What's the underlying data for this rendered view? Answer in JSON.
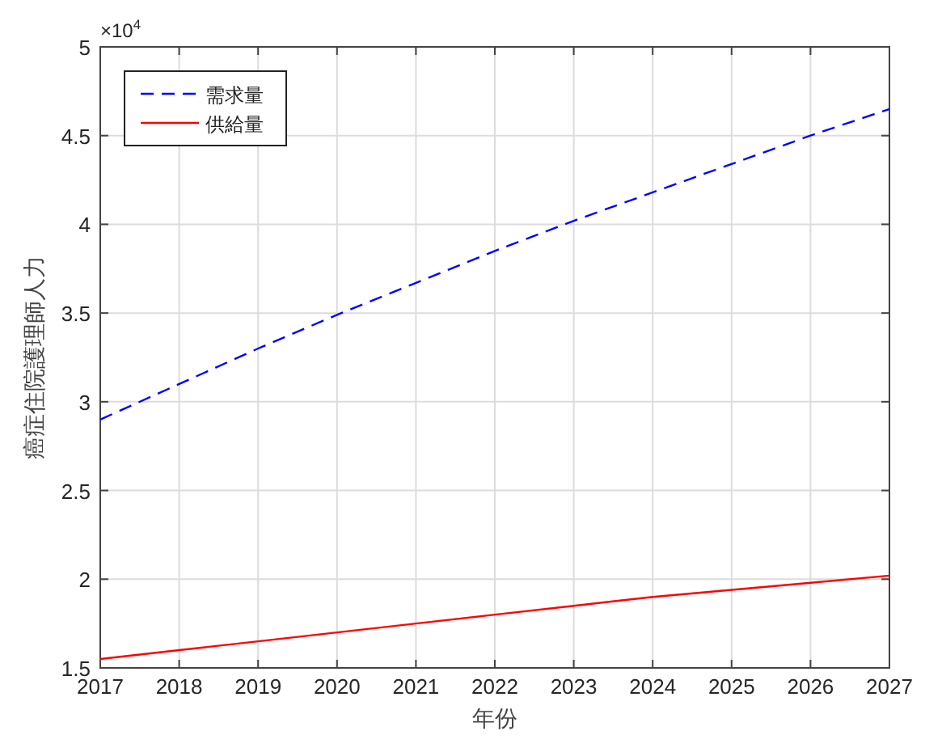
{
  "chart_data": {
    "type": "line",
    "xlabel": "年份",
    "ylabel": "癌症住院護理師人力",
    "x": [
      2017,
      2018,
      2019,
      2020,
      2021,
      2022,
      2023,
      2024,
      2025,
      2026,
      2027
    ],
    "series": [
      {
        "name": "需求量",
        "color": "#0000ff",
        "line_style": "dashed",
        "values": [
          2.9,
          3.1,
          3.3,
          3.49,
          3.67,
          3.85,
          4.02,
          4.18,
          4.34,
          4.5,
          4.65
        ]
      },
      {
        "name": "供給量",
        "color": "#ff0000",
        "line_style": "solid",
        "values": [
          1.55,
          1.6,
          1.65,
          1.7,
          1.75,
          1.8,
          1.85,
          1.9,
          1.94,
          1.98,
          2.02
        ]
      }
    ],
    "xlim": [
      2017,
      2027
    ],
    "xticks": [
      2017,
      2018,
      2019,
      2020,
      2021,
      2022,
      2023,
      2024,
      2025,
      2026,
      2027
    ],
    "ylim": [
      1.5,
      5
    ],
    "yticks": [
      1.5,
      2,
      2.5,
      3,
      3.5,
      4,
      4.5,
      5
    ],
    "annotations": [
      "×10$^{4}$"
    ],
    "grid": true,
    "legend": "top left",
    "marker": "none"
  }
}
